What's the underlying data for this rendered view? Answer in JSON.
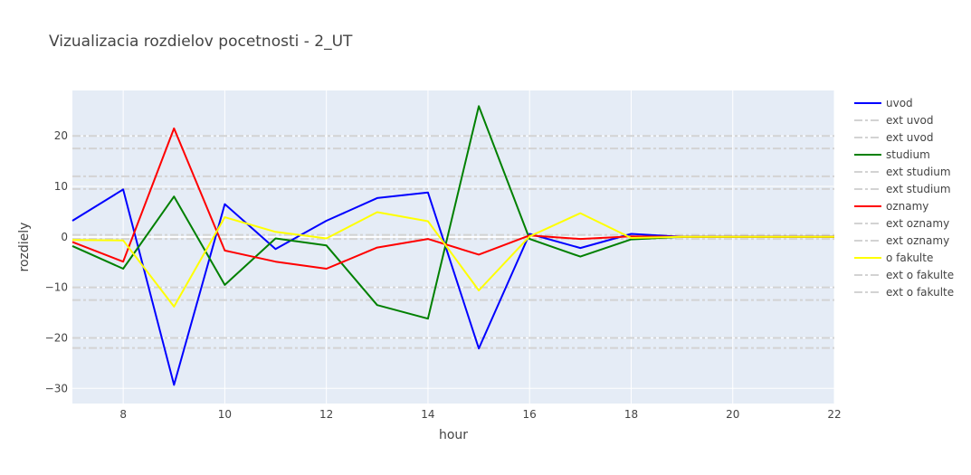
{
  "chart_data": {
    "type": "line",
    "title": "Vizualizacia rozdielov pocetnosti - 2_UT",
    "xlabel": "hour",
    "ylabel": "rozdiely",
    "xlim": [
      7,
      22
    ],
    "ylim": [
      -33,
      29
    ],
    "xticks": [
      8,
      10,
      12,
      14,
      16,
      18,
      20,
      22
    ],
    "yticks": [
      -30,
      -20,
      -10,
      0,
      10,
      20
    ],
    "grid": true,
    "legend_position": "right",
    "x": [
      7,
      8,
      9,
      10,
      11,
      12,
      13,
      14,
      15,
      16,
      17,
      18,
      19,
      20,
      21,
      22
    ],
    "series": [
      {
        "name": "uvod",
        "color": "#0000ff",
        "values": [
          3.2,
          9.4,
          -29.3,
          6.5,
          -2.4,
          3.2,
          7.7,
          8.8,
          -22.1,
          0.6,
          -2.2,
          0.6,
          0,
          0,
          0,
          0
        ]
      },
      {
        "name": "studium",
        "color": "#008000",
        "values": [
          -1.8,
          -6.3,
          8.0,
          -9.5,
          -0.3,
          -1.7,
          -13.5,
          -16.2,
          25.9,
          -0.4,
          -3.9,
          -0.5,
          0,
          0,
          0,
          0
        ]
      },
      {
        "name": "oznamy",
        "color": "#ff0000",
        "values": [
          -1.0,
          -4.9,
          21.5,
          -2.7,
          -4.9,
          -6.3,
          -2.1,
          -0.4,
          -3.5,
          0.3,
          -0.4,
          0.1,
          0,
          0,
          0,
          0
        ]
      },
      {
        "name": "o fakulte",
        "color": "#ffff00",
        "values": [
          -0.6,
          -0.7,
          -13.8,
          3.9,
          1.0,
          -0.3,
          4.9,
          3.1,
          -10.6,
          0.1,
          4.7,
          -0.2,
          0,
          0,
          0,
          0
        ]
      }
    ],
    "reference_lines": [
      {
        "name": "ext uvod",
        "color": "#d3d3d3",
        "y": 17.5
      },
      {
        "name": "ext uvod",
        "color": "#d3d3d3",
        "y": -22.0
      },
      {
        "name": "ext studium",
        "color": "#d3d3d3",
        "y": 20.0
      },
      {
        "name": "ext studium",
        "color": "#d3d3d3",
        "y": -20.0
      },
      {
        "name": "ext oznamy",
        "color": "#d3d3d3",
        "y": 12.0
      },
      {
        "name": "ext oznamy",
        "color": "#d3d3d3",
        "y": -12.5
      },
      {
        "name": "ext o fakulte",
        "color": "#d3d3d3",
        "y": 9.5
      },
      {
        "name": "ext o fakulte",
        "color": "#d3d3d3",
        "y": -10.0
      },
      {
        "name": "",
        "color": "#d3d3d3",
        "y": 0.4
      },
      {
        "name": "",
        "color": "#d3d3d3",
        "y": -0.4
      }
    ],
    "legend": [
      {
        "label": "uvod",
        "style": "solid",
        "color": "#0000ff"
      },
      {
        "label": "ext uvod",
        "style": "dashdot",
        "color": "#d3d3d3"
      },
      {
        "label": "ext uvod",
        "style": "dashdot",
        "color": "#d3d3d3"
      },
      {
        "label": "studium",
        "style": "solid",
        "color": "#008000"
      },
      {
        "label": "ext studium",
        "style": "dashdot",
        "color": "#d3d3d3"
      },
      {
        "label": "ext studium",
        "style": "dashdot",
        "color": "#d3d3d3"
      },
      {
        "label": "oznamy",
        "style": "solid",
        "color": "#ff0000"
      },
      {
        "label": "ext oznamy",
        "style": "dashdot",
        "color": "#d3d3d3"
      },
      {
        "label": "ext oznamy",
        "style": "dashdot",
        "color": "#d3d3d3"
      },
      {
        "label": "o fakulte",
        "style": "solid",
        "color": "#ffff00"
      },
      {
        "label": "ext o fakulte",
        "style": "dashdot",
        "color": "#d3d3d3"
      },
      {
        "label": "ext o fakulte",
        "style": "dashdot",
        "color": "#d3d3d3"
      }
    ],
    "plot_background": "#e5ecf6",
    "grid_color": "#ffffff"
  }
}
